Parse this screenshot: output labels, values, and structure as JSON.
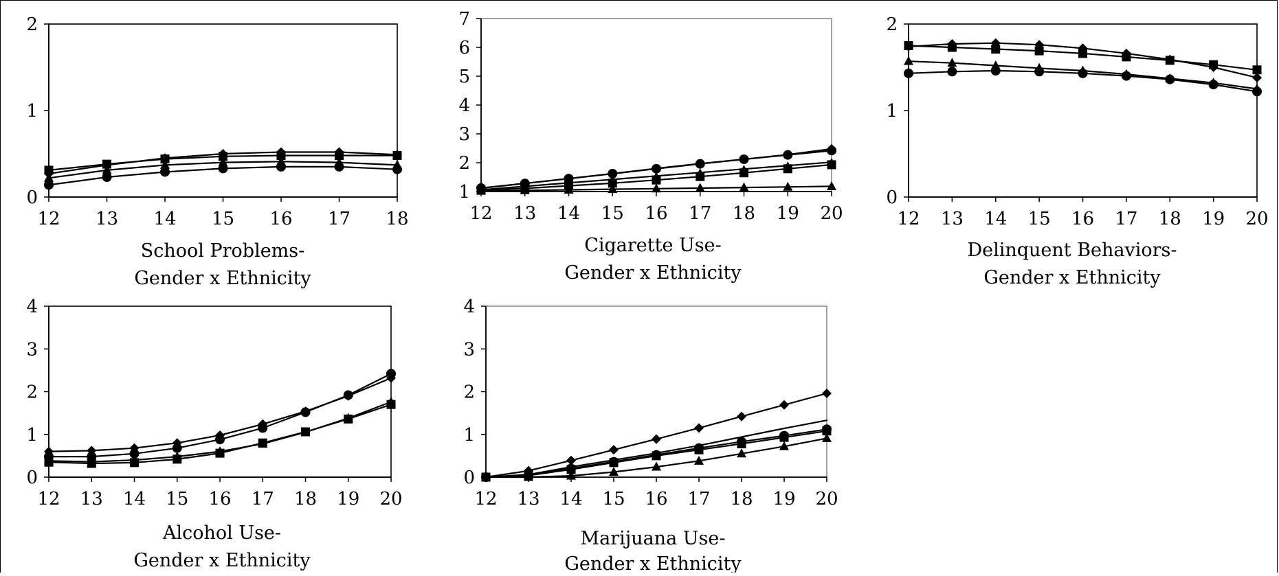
{
  "figure": {
    "charts": [
      {
        "id": "school-problems",
        "caption_line1": "School Problems-",
        "caption_line2": "Gender x Ethnicity"
      },
      {
        "id": "cigarette-use",
        "caption_line1": "Cigarette Use-",
        "caption_line2": "Gender x Ethnicity"
      },
      {
        "id": "delinquent-behaviors",
        "caption_line1": "Delinquent Behaviors-",
        "caption_line2": "Gender x Ethnicity"
      },
      {
        "id": "alcohol-use",
        "caption_line1": "Alcohol Use-",
        "caption_line2": "Gender x Ethnicity"
      },
      {
        "id": "marijuana-use",
        "caption_line1": "Marijuana Use-",
        "caption_line2": "Gender x Ethnicity"
      }
    ]
  },
  "chart_data": [
    {
      "type": "line",
      "title": "School Problems- Gender x Ethnicity",
      "x": [
        12,
        13,
        14,
        15,
        16,
        17,
        18
      ],
      "xlim": [
        12,
        18
      ],
      "ylim": [
        0,
        2
      ],
      "yticks": [
        0,
        1,
        2
      ],
      "grid": false,
      "series": [
        {
          "marker": "diamond",
          "values": [
            0.27,
            0.37,
            0.45,
            0.5,
            0.52,
            0.52,
            0.49
          ]
        },
        {
          "marker": "square",
          "values": [
            0.31,
            0.38,
            0.44,
            0.47,
            0.48,
            0.48,
            0.48
          ]
        },
        {
          "marker": "triangle",
          "values": [
            0.22,
            0.31,
            0.37,
            0.4,
            0.41,
            0.4,
            0.37
          ]
        },
        {
          "marker": "circle",
          "values": [
            0.14,
            0.23,
            0.29,
            0.33,
            0.35,
            0.35,
            0.32
          ]
        }
      ]
    },
    {
      "type": "line",
      "title": "Cigarette Use- Gender x Ethnicity",
      "x": [
        12,
        13,
        14,
        15,
        16,
        17,
        18,
        19,
        20
      ],
      "xlim": [
        12,
        20
      ],
      "ylim": [
        1,
        7
      ],
      "yticks": [
        1,
        2,
        3,
        4,
        5,
        6,
        7
      ],
      "grid": false,
      "series": [
        {
          "marker": "diamond",
          "values": [
            1.12,
            1.28,
            1.45,
            1.62,
            1.8,
            1.97,
            2.12,
            2.28,
            2.48
          ]
        },
        {
          "marker": "circle",
          "values": [
            1.12,
            1.28,
            1.45,
            1.62,
            1.79,
            1.96,
            2.12,
            2.27,
            2.42
          ]
        },
        {
          "marker": "triangle-open-line",
          "values": [
            1.06,
            1.18,
            1.3,
            1.42,
            1.54,
            1.66,
            1.78,
            1.9,
            2.02
          ]
        },
        {
          "marker": "square",
          "values": [
            1.05,
            1.11,
            1.2,
            1.29,
            1.4,
            1.52,
            1.65,
            1.79,
            1.93
          ]
        },
        {
          "marker": "triangle",
          "values": [
            1.02,
            1.04,
            1.06,
            1.08,
            1.1,
            1.12,
            1.14,
            1.16,
            1.18
          ]
        }
      ]
    },
    {
      "type": "line",
      "title": "Delinquent Behaviors- Gender x Ethnicity",
      "x": [
        12,
        13,
        14,
        15,
        16,
        17,
        18,
        19,
        20
      ],
      "xlim": [
        12,
        20
      ],
      "ylim": [
        0,
        2
      ],
      "yticks": [
        0,
        1,
        2
      ],
      "grid": false,
      "series": [
        {
          "marker": "diamond",
          "values": [
            1.74,
            1.77,
            1.78,
            1.76,
            1.72,
            1.66,
            1.59,
            1.5,
            1.38
          ]
        },
        {
          "marker": "square",
          "values": [
            1.75,
            1.73,
            1.71,
            1.69,
            1.66,
            1.62,
            1.58,
            1.53,
            1.47
          ]
        },
        {
          "marker": "triangle",
          "values": [
            1.57,
            1.55,
            1.52,
            1.49,
            1.46,
            1.42,
            1.37,
            1.32,
            1.25
          ]
        },
        {
          "marker": "circle",
          "values": [
            1.43,
            1.45,
            1.46,
            1.45,
            1.43,
            1.4,
            1.36,
            1.3,
            1.22
          ]
        }
      ]
    },
    {
      "type": "line",
      "title": "Alcohol Use- Gender x Ethnicity",
      "x": [
        12,
        13,
        14,
        15,
        16,
        17,
        18,
        19,
        20
      ],
      "xlim": [
        12,
        20
      ],
      "ylim": [
        0,
        4
      ],
      "yticks": [
        0,
        1,
        2,
        3,
        4
      ],
      "grid": false,
      "series": [
        {
          "marker": "diamond",
          "values": [
            0.6,
            0.62,
            0.68,
            0.8,
            0.98,
            1.24,
            1.54,
            1.9,
            2.32
          ]
        },
        {
          "marker": "circle",
          "values": [
            0.48,
            0.48,
            0.55,
            0.68,
            0.88,
            1.15,
            1.52,
            1.92,
            2.42
          ]
        },
        {
          "marker": "triangle",
          "values": [
            0.38,
            0.36,
            0.4,
            0.48,
            0.6,
            0.78,
            1.05,
            1.38,
            1.76
          ]
        },
        {
          "marker": "square",
          "values": [
            0.35,
            0.32,
            0.34,
            0.42,
            0.56,
            0.8,
            1.06,
            1.36,
            1.7
          ]
        }
      ]
    },
    {
      "type": "line",
      "title": "Marijuana Use- Gender x Ethnicity",
      "x": [
        12,
        13,
        14,
        15,
        16,
        17,
        18,
        19,
        20
      ],
      "xlim": [
        12,
        20
      ],
      "ylim": [
        0,
        4
      ],
      "yticks": [
        0,
        1,
        2,
        3,
        4
      ],
      "grid": false,
      "series": [
        {
          "marker": "diamond",
          "values": [
            0.0,
            0.15,
            0.39,
            0.64,
            0.89,
            1.15,
            1.42,
            1.69,
            1.96
          ]
        },
        {
          "marker": "none",
          "values": [
            0.0,
            0.06,
            0.24,
            0.4,
            0.56,
            0.74,
            0.94,
            1.14,
            1.33
          ]
        },
        {
          "marker": "circle",
          "values": [
            0.0,
            0.05,
            0.2,
            0.36,
            0.52,
            0.68,
            0.83,
            0.97,
            1.12
          ]
        },
        {
          "marker": "square",
          "values": [
            0.0,
            0.04,
            0.18,
            0.34,
            0.5,
            0.64,
            0.78,
            0.93,
            1.08
          ]
        },
        {
          "marker": "triangle",
          "values": [
            0.0,
            0.0,
            0.03,
            0.12,
            0.24,
            0.38,
            0.55,
            0.72,
            0.91
          ]
        }
      ]
    }
  ]
}
